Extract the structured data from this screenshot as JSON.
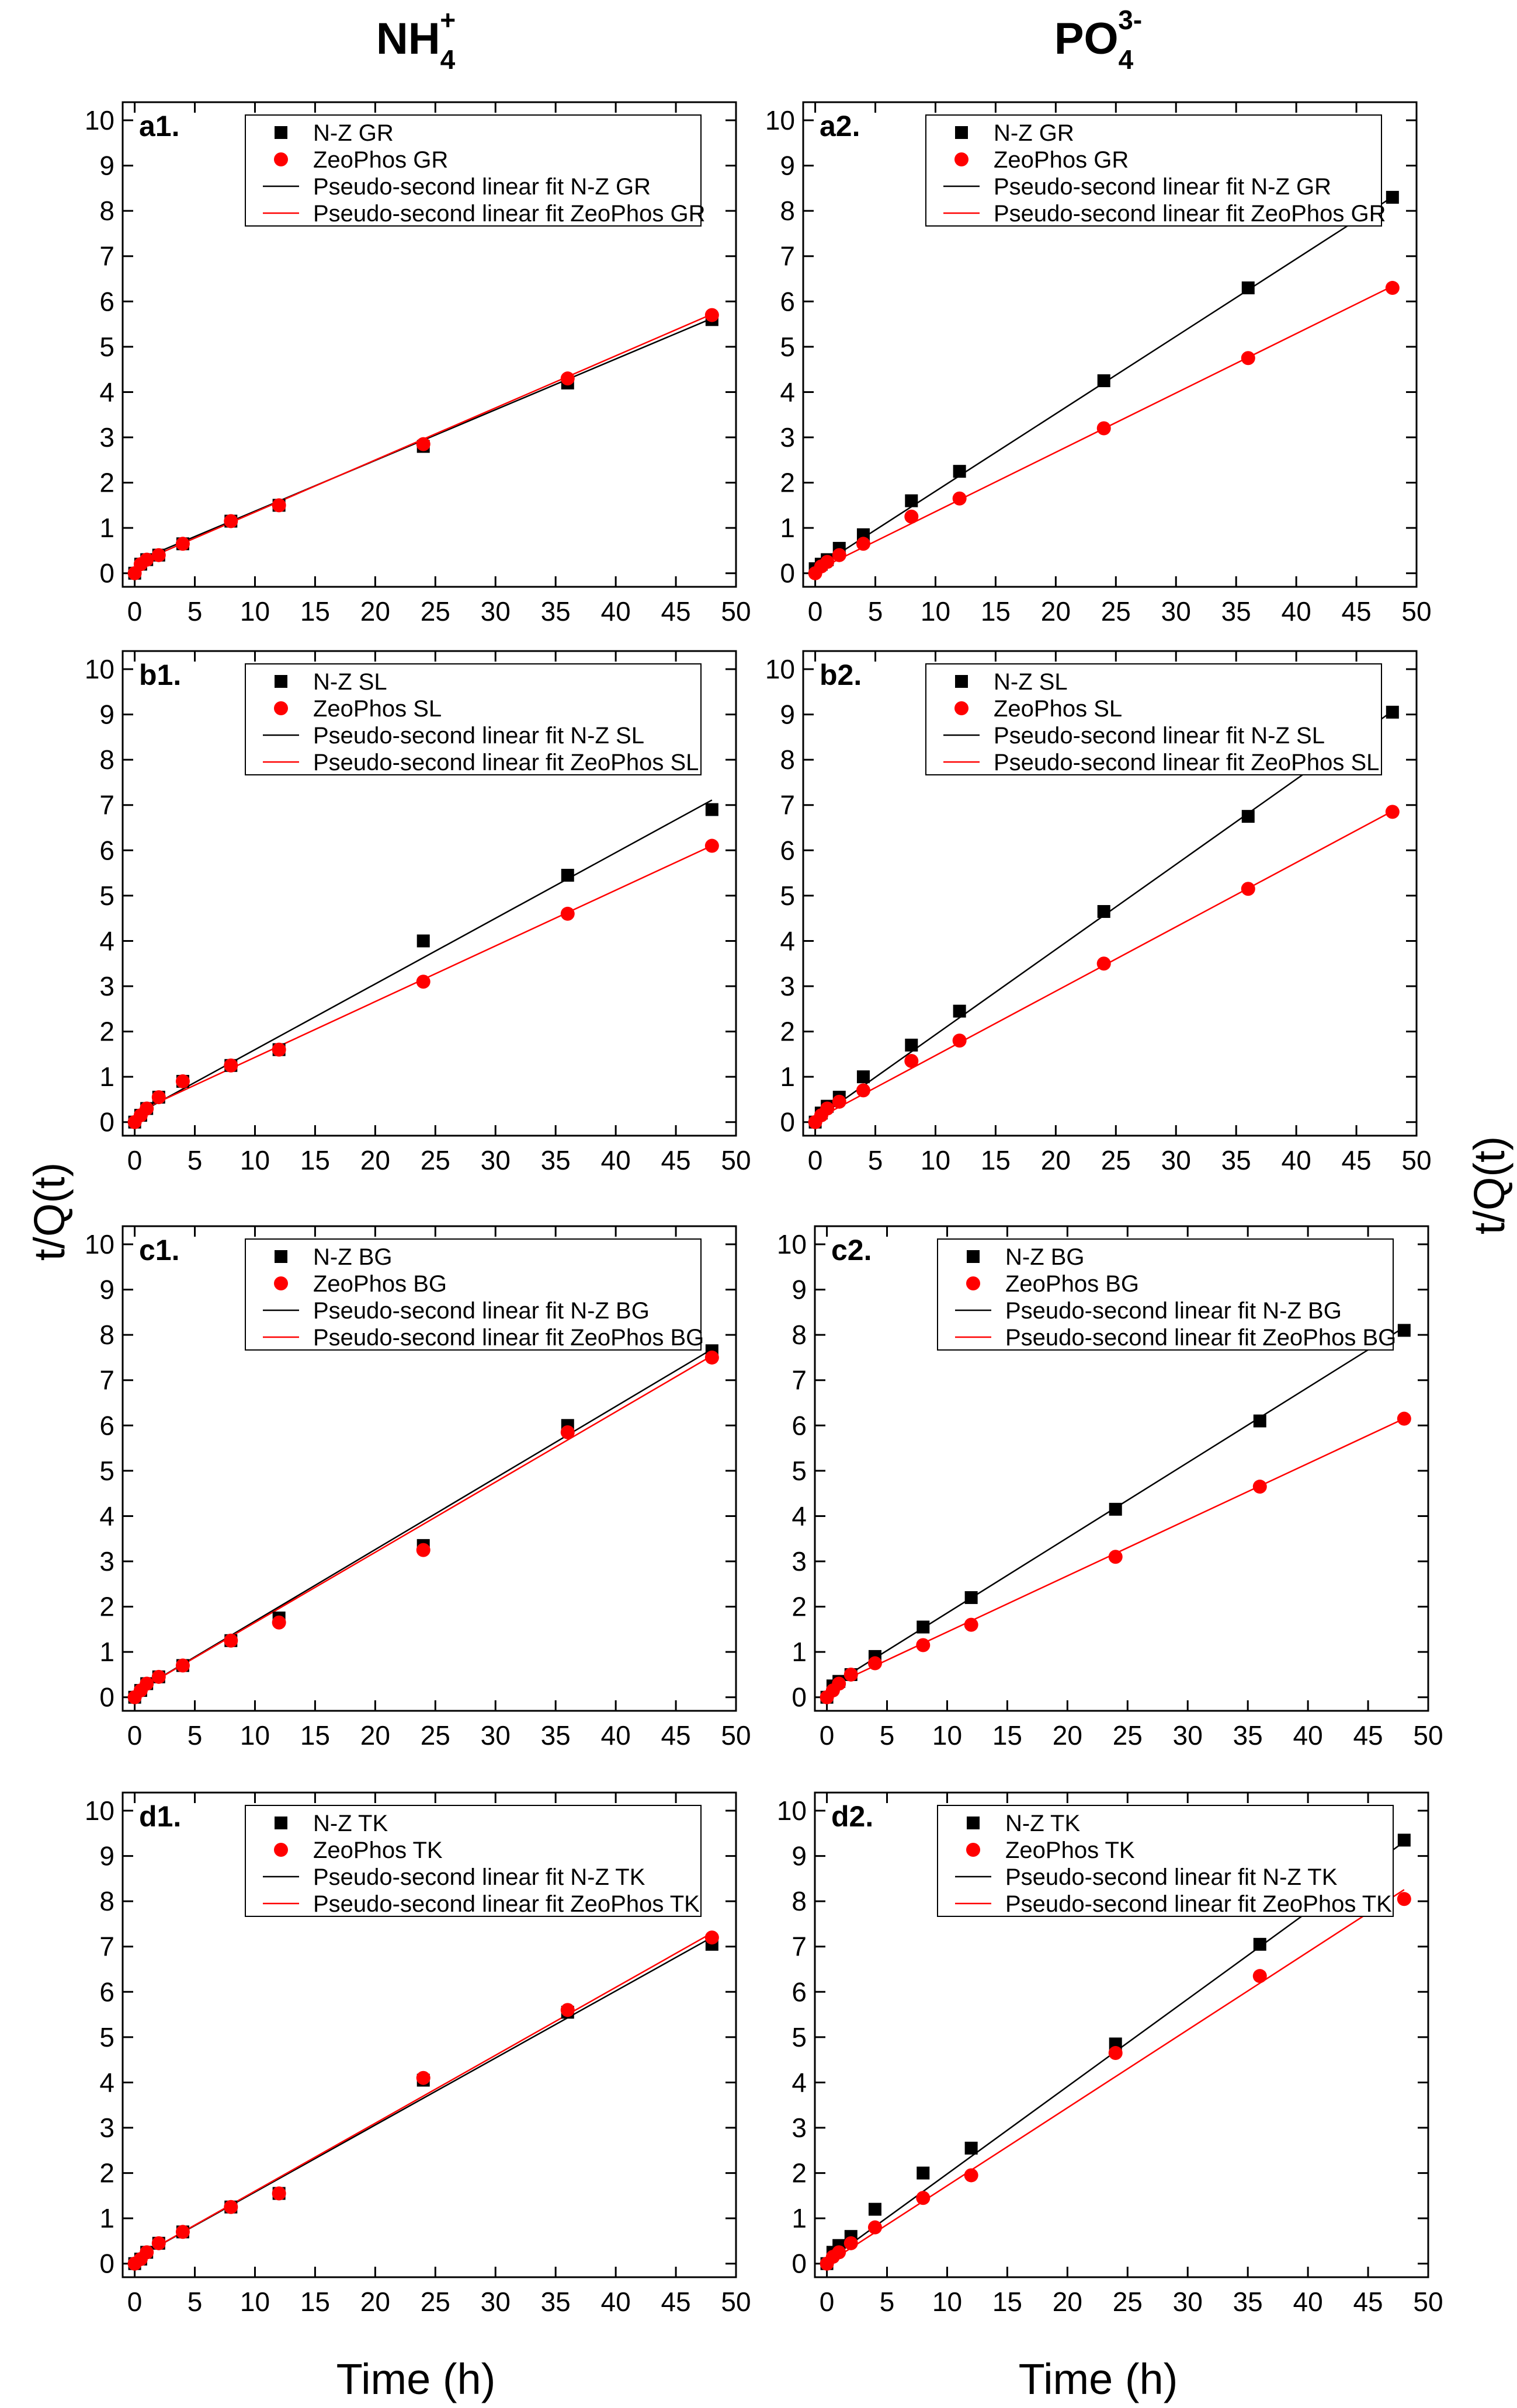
{
  "figure": {
    "column_titles": [
      {
        "main": "NH",
        "sub": "4",
        "sup": "+"
      },
      {
        "main": "PO",
        "sub": "4",
        "sup": "3-"
      }
    ],
    "xlabel": "Time (h)",
    "ylabel": "t/Q(t)"
  },
  "chart_data": [
    {
      "type": "scatter",
      "id": "a1",
      "label": "a1.",
      "xlim": [
        -1,
        50
      ],
      "ylim": [
        -0.3,
        10.4
      ],
      "xticks": [
        0,
        5,
        10,
        15,
        20,
        25,
        30,
        35,
        40,
        45,
        50
      ],
      "yticks": [
        0,
        1,
        2,
        3,
        4,
        5,
        6,
        7,
        8,
        9,
        10
      ],
      "legend_loc": "top-right",
      "series": [
        {
          "name": "N-Z  GR",
          "color": "#000000",
          "marker": "square",
          "x": [
            0,
            0.5,
            1,
            2,
            4,
            8,
            12,
            24,
            36,
            48
          ],
          "y": [
            0,
            0.2,
            0.3,
            0.4,
            0.65,
            1.15,
            1.5,
            2.8,
            4.2,
            5.6
          ],
          "fit_name": "Pseudo-second linear fit N-Z GR",
          "fit": [
            0.25,
            0.112
          ]
        },
        {
          "name": "ZeoPhos GR",
          "color": "#ff0000",
          "marker": "circle",
          "x": [
            0,
            0.5,
            1,
            2,
            4,
            8,
            12,
            24,
            36,
            48
          ],
          "y": [
            0,
            0.2,
            0.3,
            0.4,
            0.65,
            1.15,
            1.5,
            2.85,
            4.3,
            5.7
          ],
          "fit_name": "Pseudo-second linear fit ZeoPhos GR",
          "fit": [
            0.2,
            0.115
          ]
        }
      ]
    },
    {
      "type": "scatter",
      "id": "a2",
      "label": "a2.",
      "xlim": [
        -1,
        50
      ],
      "ylim": [
        -0.3,
        10.4
      ],
      "xticks": [
        0,
        5,
        10,
        15,
        20,
        25,
        30,
        35,
        40,
        45,
        50
      ],
      "yticks": [
        0,
        1,
        2,
        3,
        4,
        5,
        6,
        7,
        8,
        9,
        10
      ],
      "legend_loc": "top-right",
      "series": [
        {
          "name": "N-Z  GR",
          "color": "#000000",
          "marker": "square",
          "x": [
            0,
            0.5,
            1,
            2,
            4,
            8,
            12,
            24,
            36,
            48
          ],
          "y": [
            0.1,
            0.2,
            0.3,
            0.55,
            0.85,
            1.6,
            2.25,
            4.25,
            6.3,
            8.3
          ],
          "fit_name": "Pseudo-second linear fit N-Z GR",
          "fit": [
            0.1,
            0.171
          ]
        },
        {
          "name": "ZeoPhos GR",
          "color": "#ff0000",
          "marker": "circle",
          "x": [
            0,
            0.5,
            1,
            2,
            4,
            8,
            12,
            24,
            36,
            48
          ],
          "y": [
            0,
            0.15,
            0.25,
            0.4,
            0.65,
            1.25,
            1.65,
            3.2,
            4.75,
            6.3
          ],
          "fit_name": "Pseudo-second linear fit ZeoPhos GR",
          "fit": [
            0.05,
            0.131
          ]
        }
      ]
    },
    {
      "type": "scatter",
      "id": "b1",
      "label": "b1.",
      "xlim": [
        -1,
        50
      ],
      "ylim": [
        -0.3,
        10.4
      ],
      "xticks": [
        0,
        5,
        10,
        15,
        20,
        25,
        30,
        35,
        40,
        45,
        50
      ],
      "yticks": [
        0,
        1,
        2,
        3,
        4,
        5,
        6,
        7,
        8,
        9,
        10
      ],
      "legend_loc": "top-right",
      "series": [
        {
          "name": "N-Z SL",
          "color": "#000000",
          "marker": "square",
          "x": [
            0,
            0.5,
            1,
            2,
            4,
            8,
            12,
            24,
            36,
            48
          ],
          "y": [
            0,
            0.15,
            0.3,
            0.55,
            0.9,
            1.25,
            1.6,
            4.0,
            5.45,
            6.9
          ],
          "fit_name": "Pseudo-second linear fit N-Z SL",
          "fit": [
            0.15,
            0.145
          ]
        },
        {
          "name": "ZeoPhos SL",
          "color": "#ff0000",
          "marker": "circle",
          "x": [
            0,
            0.5,
            1,
            2,
            4,
            8,
            12,
            24,
            36,
            48
          ],
          "y": [
            0,
            0.15,
            0.3,
            0.55,
            0.9,
            1.25,
            1.6,
            3.1,
            4.6,
            6.1
          ],
          "fit_name": "Pseudo-second linear fit ZeoPhos SL",
          "fit": [
            0.2,
            0.123
          ]
        }
      ]
    },
    {
      "type": "scatter",
      "id": "b2",
      "label": "b2.",
      "xlim": [
        -1,
        50
      ],
      "ylim": [
        -0.3,
        10.4
      ],
      "xticks": [
        0,
        5,
        10,
        15,
        20,
        25,
        30,
        35,
        40,
        45,
        50
      ],
      "yticks": [
        0,
        1,
        2,
        3,
        4,
        5,
        6,
        7,
        8,
        9,
        10
      ],
      "legend_loc": "top-right",
      "series": [
        {
          "name": "N-Z SL",
          "color": "#000000",
          "marker": "square",
          "x": [
            0,
            0.5,
            1,
            2,
            4,
            8,
            12,
            24,
            36,
            48
          ],
          "y": [
            0,
            0.2,
            0.35,
            0.55,
            1.0,
            1.7,
            2.45,
            4.65,
            6.75,
            9.05
          ],
          "fit_name": "Pseudo-second linear fit N-Z SL",
          "fit": [
            0.05,
            0.188
          ]
        },
        {
          "name": "ZeoPhos SL",
          "color": "#ff0000",
          "marker": "circle",
          "x": [
            0,
            0.5,
            1,
            2,
            4,
            8,
            12,
            24,
            36,
            48
          ],
          "y": [
            0,
            0.15,
            0.3,
            0.45,
            0.7,
            1.35,
            1.8,
            3.5,
            5.15,
            6.85
          ],
          "fit_name": "Pseudo-second linear fit ZeoPhos SL",
          "fit": [
            0.05,
            0.142
          ]
        }
      ]
    },
    {
      "type": "scatter",
      "id": "c1",
      "label": "c1.",
      "xlim": [
        -1,
        50
      ],
      "ylim": [
        -0.3,
        10.4
      ],
      "xticks": [
        0,
        5,
        10,
        15,
        20,
        25,
        30,
        35,
        40,
        45,
        50
      ],
      "yticks": [
        0,
        1,
        2,
        3,
        4,
        5,
        6,
        7,
        8,
        9,
        10
      ],
      "legend_loc": "top-right",
      "series": [
        {
          "name": "N-Z BG",
          "color": "#000000",
          "marker": "square",
          "x": [
            0,
            0.5,
            1,
            2,
            4,
            8,
            12,
            24,
            36,
            48
          ],
          "y": [
            0,
            0.15,
            0.3,
            0.45,
            0.7,
            1.25,
            1.75,
            3.35,
            6.0,
            7.65
          ],
          "fit_name": "Pseudo-second linear fit N-Z BG",
          "fit": [
            0.1,
            0.158
          ]
        },
        {
          "name": "ZeoPhos BG",
          "color": "#ff0000",
          "marker": "circle",
          "x": [
            0,
            0.5,
            1,
            2,
            4,
            8,
            12,
            24,
            36,
            48
          ],
          "y": [
            0,
            0.15,
            0.3,
            0.45,
            0.7,
            1.25,
            1.65,
            3.25,
            5.85,
            7.5
          ],
          "fit_name": "Pseudo-second linear fit ZeoPhos BG",
          "fit": [
            0.1,
            0.155
          ]
        }
      ]
    },
    {
      "type": "scatter",
      "id": "c2",
      "label": "c2.",
      "xlim": [
        -1,
        50
      ],
      "ylim": [
        -0.3,
        10.4
      ],
      "xticks": [
        0,
        5,
        10,
        15,
        20,
        25,
        30,
        35,
        40,
        45,
        50
      ],
      "yticks": [
        0,
        1,
        2,
        3,
        4,
        5,
        6,
        7,
        8,
        9,
        10
      ],
      "legend_loc": "top-right",
      "series": [
        {
          "name": "N-Z BG",
          "color": "#000000",
          "marker": "square",
          "x": [
            0,
            0.5,
            1,
            2,
            4,
            8,
            12,
            24,
            36,
            48
          ],
          "y": [
            0,
            0.25,
            0.35,
            0.5,
            0.9,
            1.55,
            2.2,
            4.15,
            6.1,
            8.1
          ],
          "fit_name": "Pseudo-second linear fit N-Z BG",
          "fit": [
            0.2,
            0.166
          ]
        },
        {
          "name": "ZeoPhos BG",
          "color": "#ff0000",
          "marker": "circle",
          "x": [
            0,
            0.5,
            1,
            2,
            4,
            8,
            12,
            24,
            36,
            48
          ],
          "y": [
            0,
            0.15,
            0.3,
            0.5,
            0.75,
            1.15,
            1.6,
            3.1,
            4.65,
            6.15
          ],
          "fit_name": "Pseudo-second linear fit ZeoPhos BG",
          "fit": [
            0.2,
            0.124
          ]
        }
      ]
    },
    {
      "type": "scatter",
      "id": "d1",
      "label": "d1.",
      "xlim": [
        -1,
        50
      ],
      "ylim": [
        -0.3,
        10.4
      ],
      "xticks": [
        0,
        5,
        10,
        15,
        20,
        25,
        30,
        35,
        40,
        45,
        50
      ],
      "yticks": [
        0,
        1,
        2,
        3,
        4,
        5,
        6,
        7,
        8,
        9,
        10
      ],
      "legend_loc": "top-right",
      "series": [
        {
          "name": "N-Z TK",
          "color": "#000000",
          "marker": "square",
          "x": [
            0,
            0.5,
            1,
            2,
            4,
            8,
            12,
            24,
            36,
            48
          ],
          "y": [
            0,
            0.1,
            0.25,
            0.45,
            0.7,
            1.25,
            1.55,
            4.05,
            5.55,
            7.05
          ],
          "fit_name": "Pseudo-second linear fit N-Z TK",
          "fit": [
            0.1,
            0.148
          ]
        },
        {
          "name": "ZeoPhos TK",
          "color": "#ff0000",
          "marker": "circle",
          "x": [
            0,
            0.5,
            1,
            2,
            4,
            8,
            12,
            24,
            36,
            48
          ],
          "y": [
            0,
            0.1,
            0.25,
            0.45,
            0.7,
            1.25,
            1.55,
            4.1,
            5.6,
            7.2
          ],
          "fit_name": "Pseudo-second linear fit ZeoPhos TK",
          "fit": [
            0.1,
            0.15
          ]
        }
      ]
    },
    {
      "type": "scatter",
      "id": "d2",
      "label": "d2.",
      "xlim": [
        -1,
        50
      ],
      "ylim": [
        -0.3,
        10.4
      ],
      "xticks": [
        0,
        5,
        10,
        15,
        20,
        25,
        30,
        35,
        40,
        45,
        50
      ],
      "yticks": [
        0,
        1,
        2,
        3,
        4,
        5,
        6,
        7,
        8,
        9,
        10
      ],
      "legend_loc": "top-right",
      "series": [
        {
          "name": "N-Z TK",
          "color": "#000000",
          "marker": "square",
          "x": [
            0,
            0.5,
            1,
            2,
            4,
            8,
            12,
            24,
            36,
            48
          ],
          "y": [
            0,
            0.25,
            0.4,
            0.6,
            1.2,
            2.0,
            2.55,
            4.85,
            7.05,
            9.35
          ],
          "fit_name": "Pseudo-second linear fit N-Z TK",
          "fit": [
            0.05,
            0.193
          ]
        },
        {
          "name": "ZeoPhos TK",
          "color": "#ff0000",
          "marker": "circle",
          "x": [
            0,
            0.5,
            1,
            2,
            4,
            8,
            12,
            24,
            36,
            48
          ],
          "y": [
            0,
            0.15,
            0.25,
            0.45,
            0.8,
            1.45,
            1.95,
            4.65,
            6.35,
            8.05
          ],
          "fit_name": "Pseudo-second linear fit ZeoPhos TK",
          "fit": [
            0,
            0.172
          ]
        }
      ]
    }
  ]
}
